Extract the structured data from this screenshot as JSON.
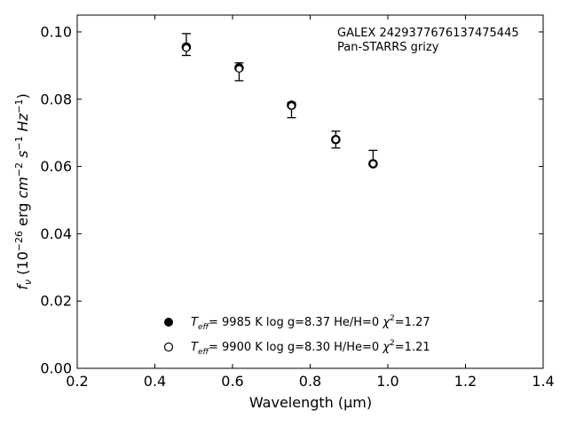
{
  "chart_data": {
    "type": "scatter",
    "xlabel": "Wavelength (μm)",
    "xlim": [
      0.2,
      1.4
    ],
    "ylim": [
      0.0,
      0.105
    ],
    "xticks": [
      0.2,
      0.4,
      0.6,
      0.8,
      1.0,
      1.2,
      1.4
    ],
    "xtick_labels": [
      "0.2",
      "0.4",
      "0.6",
      "0.8",
      "1.0",
      "1.2",
      "1.4"
    ],
    "yticks": [
      0.0,
      0.02,
      0.04,
      0.06,
      0.08,
      0.1
    ],
    "ytick_labels": [
      "0.00",
      "0.02",
      "0.04",
      "0.06",
      "0.08",
      "0.10"
    ],
    "annotation_lines": [
      "GALEX 2429377676137475445",
      "Pan-STARRS grizy"
    ],
    "observed": {
      "x": [
        0.481,
        0.617,
        0.752,
        0.866,
        0.962
      ],
      "y": [
        0.0967,
        0.0882,
        0.0767,
        0.0681,
        0.0625
      ],
      "yerr_low": [
        0.093,
        0.0855,
        0.0745,
        0.0655,
        0.0605
      ],
      "yerr_high": [
        0.0995,
        0.0908,
        0.079,
        0.0705,
        0.0648
      ]
    },
    "series": [
      {
        "marker": "filled",
        "x": [
          0.481,
          0.617,
          0.752,
          0.866,
          0.962
        ],
        "y": [
          0.0955,
          0.0893,
          0.0782,
          0.068,
          0.0608
        ],
        "legend": {
          "teff": "9985 K",
          "logg": "log g=8.37",
          "comp": "He/H=0",
          "chi": "=1.27"
        }
      },
      {
        "marker": "open",
        "x": [
          0.481,
          0.617,
          0.752,
          0.866,
          0.962
        ],
        "y": [
          0.0952,
          0.089,
          0.078,
          0.068,
          0.0608
        ],
        "legend": {
          "teff": "9900 K",
          "logg": "log g=8.30",
          "comp": "H/He=0",
          "chi": "=1.21"
        }
      }
    ],
    "legend_placement": "bottom-center",
    "grid": false
  }
}
